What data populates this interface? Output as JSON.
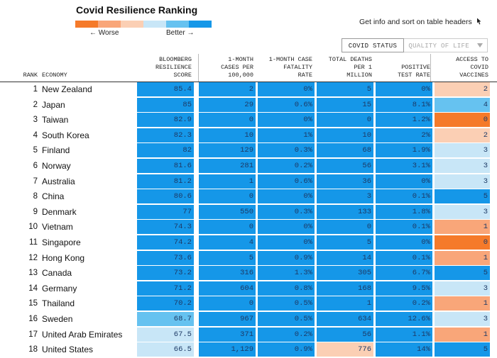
{
  "title": "Covid Resilience Ranking",
  "legend": {
    "colors": [
      "#f57a2a",
      "#f9a679",
      "#fbcfb4",
      "#c8e6f7",
      "#66c2f0",
      "#1597e8"
    ],
    "worse_label": "← Worse",
    "better_label": "Better →"
  },
  "info_text": "Get info and sort on table headers",
  "tabs": {
    "active": "COVID STATUS",
    "inactive": "QUALITY OF LIFE"
  },
  "headers": {
    "rank": "RANK",
    "economy": "ECONOMY",
    "score": [
      "BLOOMBERG",
      "RESILIENCE",
      "SCORE"
    ],
    "cases": [
      "1-MONTH",
      "CASES PER",
      "100,000"
    ],
    "fatality": [
      "1-MONTH CASE",
      "FATALITY",
      "RATE"
    ],
    "deaths": [
      "TOTAL DEATHS",
      "PER 1",
      "MILLION"
    ],
    "positive": [
      "POSITIVE",
      "TEST RATE"
    ],
    "vaccines": [
      "ACCESS TO",
      "COVID",
      "VACCINES"
    ]
  },
  "rows": [
    {
      "rank": "1",
      "economy": "New Zealand",
      "score": "85.4",
      "cases": "2",
      "fatality": "0%",
      "deaths": "5",
      "positive": "0%",
      "vaccines": "2",
      "c": [
        "#1597e8",
        "#1597e8",
        "#1597e8",
        "#1597e8",
        "#1597e8",
        "#fbcfb4"
      ]
    },
    {
      "rank": "2",
      "economy": "Japan",
      "score": "85",
      "cases": "29",
      "fatality": "0.6%",
      "deaths": "15",
      "positive": "8.1%",
      "vaccines": "4",
      "c": [
        "#1597e8",
        "#1597e8",
        "#1597e8",
        "#1597e8",
        "#1597e8",
        "#66c2f0"
      ]
    },
    {
      "rank": "3",
      "economy": "Taiwan",
      "score": "82.9",
      "cases": "0",
      "fatality": "0%",
      "deaths": "0",
      "positive": "1.2%",
      "vaccines": "0",
      "c": [
        "#1597e8",
        "#1597e8",
        "#1597e8",
        "#1597e8",
        "#1597e8",
        "#f57a2a"
      ]
    },
    {
      "rank": "4",
      "economy": "South Korea",
      "score": "82.3",
      "cases": "10",
      "fatality": "1%",
      "deaths": "10",
      "positive": "2%",
      "vaccines": "2",
      "c": [
        "#1597e8",
        "#1597e8",
        "#1597e8",
        "#1597e8",
        "#1597e8",
        "#fbcfb4"
      ]
    },
    {
      "rank": "5",
      "economy": "Finland",
      "score": "82",
      "cases": "129",
      "fatality": "0.3%",
      "deaths": "68",
      "positive": "1.9%",
      "vaccines": "3",
      "c": [
        "#1597e8",
        "#1597e8",
        "#1597e8",
        "#1597e8",
        "#1597e8",
        "#c8e6f7"
      ]
    },
    {
      "rank": "6",
      "economy": "Norway",
      "score": "81.6",
      "cases": "281",
      "fatality": "0.2%",
      "deaths": "56",
      "positive": "3.1%",
      "vaccines": "3",
      "c": [
        "#1597e8",
        "#1597e8",
        "#1597e8",
        "#1597e8",
        "#1597e8",
        "#c8e6f7"
      ]
    },
    {
      "rank": "7",
      "economy": "Australia",
      "score": "81.2",
      "cases": "1",
      "fatality": "0.6%",
      "deaths": "36",
      "positive": "0%",
      "vaccines": "3",
      "c": [
        "#1597e8",
        "#1597e8",
        "#1597e8",
        "#1597e8",
        "#1597e8",
        "#c8e6f7"
      ]
    },
    {
      "rank": "8",
      "economy": "China",
      "score": "80.6",
      "cases": "0",
      "fatality": "0%",
      "deaths": "3",
      "positive": "0.1%",
      "vaccines": "5",
      "c": [
        "#1597e8",
        "#1597e8",
        "#1597e8",
        "#1597e8",
        "#1597e8",
        "#1597e8"
      ]
    },
    {
      "rank": "9",
      "economy": "Denmark",
      "score": "77",
      "cases": "550",
      "fatality": "0.3%",
      "deaths": "133",
      "positive": "1.8%",
      "vaccines": "3",
      "c": [
        "#1597e8",
        "#1597e8",
        "#1597e8",
        "#1597e8",
        "#1597e8",
        "#c8e6f7"
      ]
    },
    {
      "rank": "10",
      "economy": "Vietnam",
      "score": "74.3",
      "cases": "0",
      "fatality": "0%",
      "deaths": "0",
      "positive": "0.1%",
      "vaccines": "1",
      "c": [
        "#1597e8",
        "#1597e8",
        "#1597e8",
        "#1597e8",
        "#1597e8",
        "#f9a679"
      ]
    },
    {
      "rank": "11",
      "economy": "Singapore",
      "score": "74.2",
      "cases": "4",
      "fatality": "0%",
      "deaths": "5",
      "positive": "0%",
      "vaccines": "0",
      "c": [
        "#1597e8",
        "#1597e8",
        "#1597e8",
        "#1597e8",
        "#1597e8",
        "#f57a2a"
      ]
    },
    {
      "rank": "12",
      "economy": "Hong Kong",
      "score": "73.6",
      "cases": "5",
      "fatality": "0.9%",
      "deaths": "14",
      "positive": "0.1%",
      "vaccines": "1",
      "c": [
        "#1597e8",
        "#1597e8",
        "#1597e8",
        "#1597e8",
        "#1597e8",
        "#f9a679"
      ]
    },
    {
      "rank": "13",
      "economy": "Canada",
      "score": "73.2",
      "cases": "316",
      "fatality": "1.3%",
      "deaths": "305",
      "positive": "6.7%",
      "vaccines": "5",
      "c": [
        "#1597e8",
        "#1597e8",
        "#1597e8",
        "#1597e8",
        "#1597e8",
        "#1597e8"
      ]
    },
    {
      "rank": "14",
      "economy": "Germany",
      "score": "71.2",
      "cases": "604",
      "fatality": "0.8%",
      "deaths": "168",
      "positive": "9.5%",
      "vaccines": "3",
      "c": [
        "#1597e8",
        "#1597e8",
        "#1597e8",
        "#1597e8",
        "#1597e8",
        "#c8e6f7"
      ]
    },
    {
      "rank": "15",
      "economy": "Thailand",
      "score": "70.2",
      "cases": "0",
      "fatality": "0.5%",
      "deaths": "1",
      "positive": "0.2%",
      "vaccines": "1",
      "c": [
        "#1597e8",
        "#1597e8",
        "#1597e8",
        "#1597e8",
        "#1597e8",
        "#f9a679"
      ]
    },
    {
      "rank": "16",
      "economy": "Sweden",
      "score": "68.7",
      "cases": "967",
      "fatality": "0.5%",
      "deaths": "634",
      "positive": "12.6%",
      "vaccines": "3",
      "c": [
        "#66c2f0",
        "#1597e8",
        "#1597e8",
        "#1597e8",
        "#1597e8",
        "#c8e6f7"
      ]
    },
    {
      "rank": "17",
      "economy": "United Arab Emirates",
      "score": "67.5",
      "cases": "371",
      "fatality": "0.2%",
      "deaths": "56",
      "positive": "1.1%",
      "vaccines": "1",
      "c": [
        "#c8e6f7",
        "#1597e8",
        "#1597e8",
        "#1597e8",
        "#1597e8",
        "#f9a679"
      ]
    },
    {
      "rank": "18",
      "economy": "United States",
      "score": "66.5",
      "cases": "1,129",
      "fatality": "0.9%",
      "deaths": "776",
      "positive": "14%",
      "vaccines": "5",
      "c": [
        "#c8e6f7",
        "#1597e8",
        "#1597e8",
        "#fbcfb4",
        "#1597e8",
        "#1597e8"
      ]
    }
  ]
}
